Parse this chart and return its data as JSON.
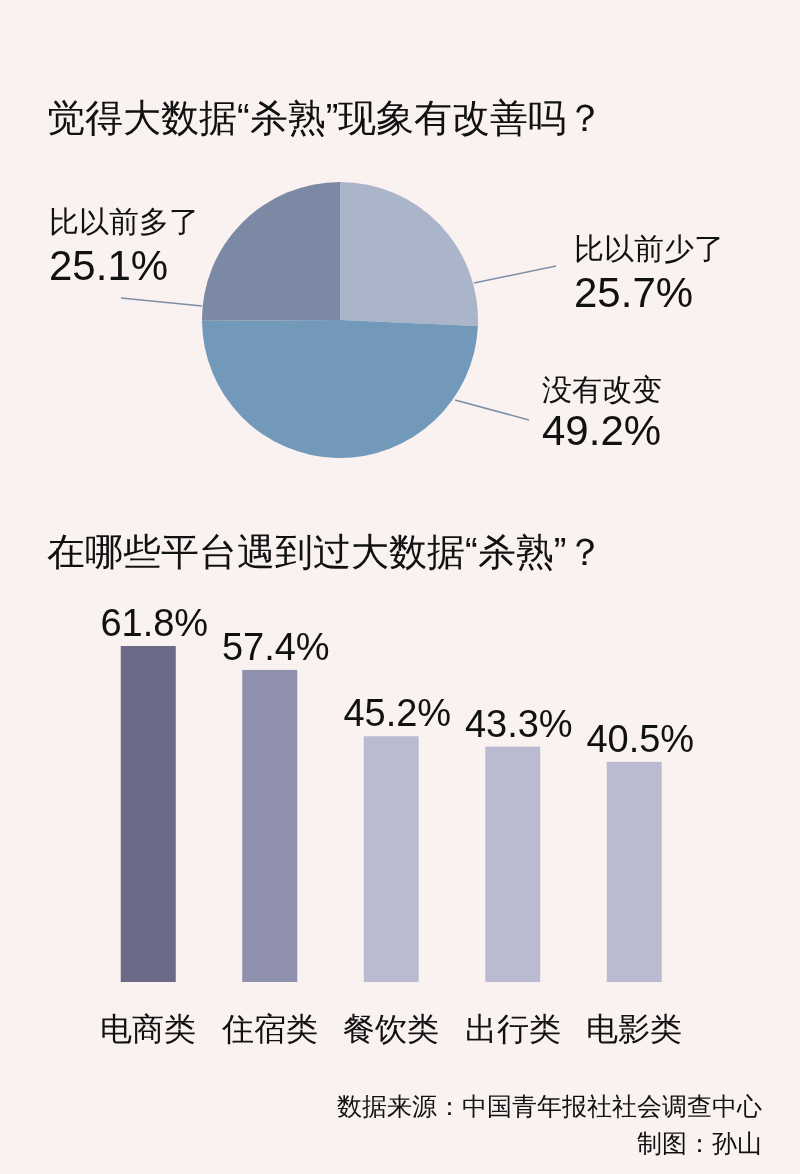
{
  "chart_data": [
    {
      "type": "pie",
      "title": "觉得大数据“杀熟”现象有改善吗？",
      "categories": [
        "比以前少了",
        "没有改变",
        "比以前多了"
      ],
      "values": [
        25.7,
        49.2,
        25.1
      ],
      "value_labels": [
        "25.7%",
        "49.2%",
        "25.1%"
      ],
      "colors": [
        "#aab5c9",
        "#7298ba",
        "#7b89a4"
      ]
    },
    {
      "type": "bar",
      "title": "在哪些平台遇到过大数据“杀熟”？",
      "categories": [
        "电商类",
        "住宿类",
        "餐饮类",
        "出行类",
        "电影类"
      ],
      "values": [
        61.8,
        57.4,
        45.2,
        43.3,
        40.5
      ],
      "value_labels": [
        "61.8%",
        "57.4%",
        "45.2%",
        "43.3%",
        "40.5%"
      ],
      "colors": [
        "#6b6b88",
        "#8f8fae",
        "#babbd1",
        "#babbd1",
        "#babbd1"
      ],
      "annotations": [
        "数据来源：中国青年报社社会调查中心",
        "制图：孙山"
      ]
    }
  ]
}
